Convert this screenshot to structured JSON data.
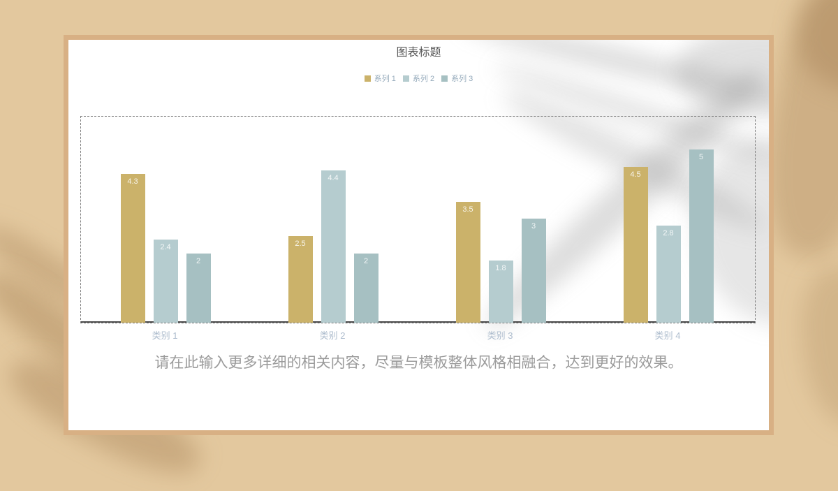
{
  "slide": {
    "caption": "请在此输入更多详细的相关内容，尽量与模板整体风格相融合，达到更好的效果。"
  },
  "colors": {
    "background": "#e3c89e",
    "card_frame": "#d8b084",
    "card_fill": "#ffffff",
    "title_text": "#595959",
    "legend_text": "#95aabb",
    "category_text": "#adbccd",
    "caption_text": "#9b9b9b",
    "axis_line": "#4c4c4c",
    "series1": "#cbb26a",
    "series2": "#b5cccf",
    "series3": "#a6c0c2"
  },
  "chart_data": {
    "type": "bar",
    "title": "图表标题",
    "categories": [
      "类别 1",
      "类别 2",
      "类别 3",
      "类别 4"
    ],
    "series": [
      {
        "name": "系列 1",
        "color": "#cbb26a",
        "values": [
          4.3,
          2.5,
          3.5,
          4.5
        ]
      },
      {
        "name": "系列 2",
        "color": "#b5cccf",
        "values": [
          2.4,
          4.4,
          1.8,
          2.8
        ]
      },
      {
        "name": "系列 3",
        "color": "#a6c0c2",
        "values": [
          2,
          2,
          3,
          5
        ]
      }
    ],
    "data_labels": [
      "4.3",
      "2.4",
      "2",
      "2.5",
      "4.4",
      "2",
      "3.5",
      "1.8",
      "3",
      "4.5",
      "2.8",
      "5"
    ],
    "xlabel": "",
    "ylabel": "",
    "ylim": [
      0,
      6
    ],
    "grid": false,
    "legend_position": "top",
    "plot_area_border": "dashed"
  }
}
